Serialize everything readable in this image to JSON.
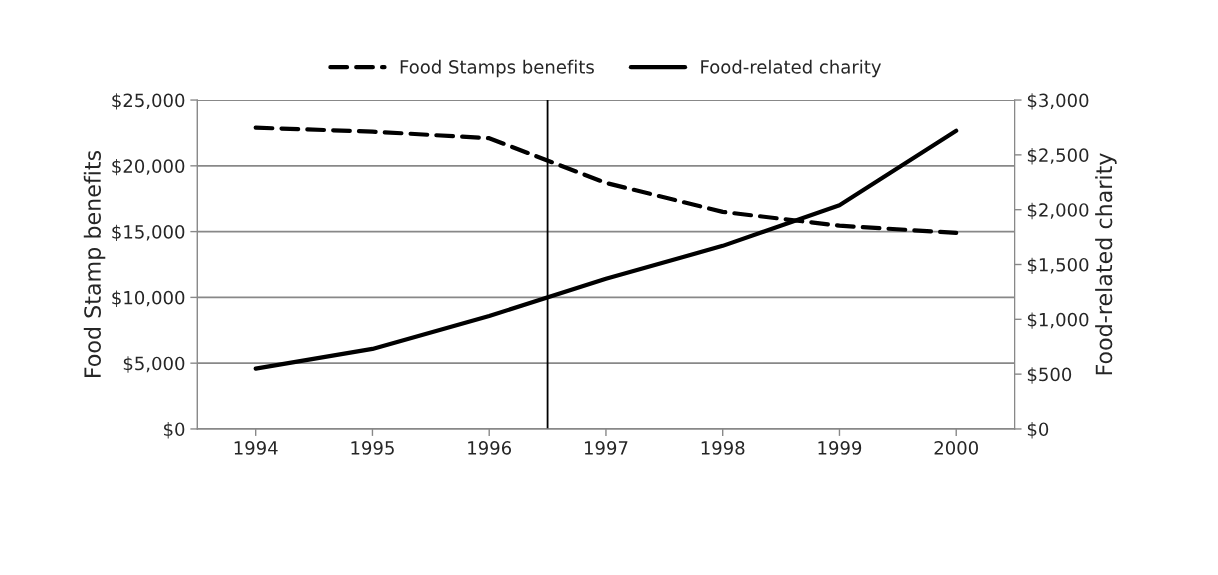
{
  "chart_data": {
    "type": "line",
    "ylabel": "Food Stamp benefits",
    "y2label": "Food-related charity",
    "x": [
      1994,
      1995,
      1996,
      1997,
      1998,
      1999,
      2000
    ],
    "series": [
      {
        "name": "Food Stamps benefits",
        "color": "#000000",
        "line_style": "dashed",
        "values": [
          22900,
          22600,
          22100,
          18700,
          16500,
          15450,
          14900
        ]
      },
      {
        "name": "Food-related charity",
        "color": "#000000",
        "line_style": "solid",
        "axis": "y2",
        "values": [
          550,
          730,
          1030,
          1370,
          1670,
          2040,
          2720
        ]
      }
    ],
    "xlim": [
      1993.5,
      2000.5
    ],
    "xticks": [
      1994,
      1995,
      1996,
      1997,
      1998,
      1999,
      2000
    ],
    "ylim": [
      0,
      25000
    ],
    "yticks": [
      {
        "value": 0,
        "label": "$0"
      },
      {
        "value": 5000,
        "label": "$5,000"
      },
      {
        "value": 10000,
        "label": "$10,000"
      },
      {
        "value": 15000,
        "label": "$15,000"
      },
      {
        "value": 20000,
        "label": "$20,000"
      },
      {
        "value": 25000,
        "label": "$25,000"
      }
    ],
    "y2lim": [
      0,
      3000
    ],
    "y2ticks": [
      {
        "value": 0,
        "label": "$0"
      },
      {
        "value": 500,
        "label": "$500"
      },
      {
        "value": 1000,
        "label": "$1,000"
      },
      {
        "value": 1500,
        "label": "$1,500"
      },
      {
        "value": 2000,
        "label": "$2,000"
      },
      {
        "value": 2500,
        "label": "$2,500"
      },
      {
        "value": 3000,
        "label": "$3,000"
      }
    ],
    "ref_lines": [
      {
        "axis": "x",
        "value": 1996.5,
        "color": "#000000"
      }
    ],
    "grid": "y",
    "legend": "top"
  }
}
